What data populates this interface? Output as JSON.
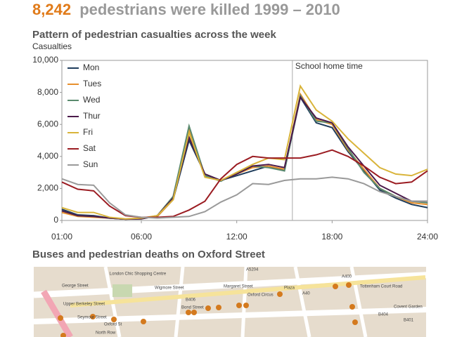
{
  "header": {
    "number": "8,242",
    "text": "pedestrians were killed 1999 – 2010"
  },
  "chart_data": {
    "type": "line",
    "title": "Pattern of pedestrian casualties across the week",
    "y_label": "Casualties",
    "x": [
      1,
      2,
      3,
      4,
      5,
      6,
      7,
      8,
      9,
      10,
      11,
      12,
      13,
      14,
      15,
      16,
      17,
      18,
      19,
      20,
      21,
      22,
      23,
      24
    ],
    "xlim": [
      1,
      24
    ],
    "xticks": [
      {
        "value": 1,
        "label": "01:00"
      },
      {
        "value": 6,
        "label": "06:00"
      },
      {
        "value": 12,
        "label": "12:00"
      },
      {
        "value": 18,
        "label": "18:00"
      },
      {
        "value": 24,
        "label": "24:00"
      }
    ],
    "ylim": [
      0,
      10000
    ],
    "yticks": [
      0,
      {
        "value": 2000,
        "label": "2,000"
      },
      {
        "value": 4000,
        "label": "4,000"
      },
      {
        "value": 6000,
        "label": "6,000"
      },
      {
        "value": 8000,
        "label": "8,000"
      },
      {
        "value": 10000,
        "label": "10,000"
      }
    ],
    "grid": false,
    "legend": "top-left",
    "annotation": {
      "label": "School home time",
      "x": 15.5
    },
    "series": [
      {
        "name": "Mon",
        "color": "#1f3d5c",
        "values": [
          700,
          350,
          300,
          150,
          80,
          120,
          250,
          1300,
          5000,
          2900,
          2500,
          2800,
          3100,
          3400,
          3100,
          7700,
          6100,
          5800,
          4300,
          3100,
          1900,
          1400,
          1000,
          800
        ]
      },
      {
        "name": "Tues",
        "color": "#e8902e",
        "values": [
          500,
          250,
          200,
          150,
          80,
          120,
          250,
          1300,
          5700,
          2700,
          2500,
          2900,
          3300,
          3400,
          3200,
          7900,
          6300,
          6000,
          4400,
          3200,
          2000,
          1500,
          1100,
          1000
        ]
      },
      {
        "name": "Wed",
        "color": "#5a8a6e",
        "values": [
          600,
          300,
          250,
          150,
          80,
          100,
          300,
          1500,
          5900,
          2800,
          2450,
          3000,
          3400,
          3300,
          3100,
          7800,
          6200,
          6100,
          4500,
          3000,
          2000,
          1500,
          1200,
          1100
        ]
      },
      {
        "name": "Thur",
        "color": "#4b1a4a",
        "values": [
          600,
          300,
          250,
          150,
          80,
          100,
          300,
          1400,
          5200,
          2900,
          2500,
          2900,
          3400,
          3500,
          3300,
          7700,
          6400,
          6100,
          4600,
          3400,
          2200,
          1700,
          1200,
          1200
        ]
      },
      {
        "name": "Fri",
        "color": "#d9b43a",
        "values": [
          800,
          500,
          500,
          200,
          100,
          150,
          300,
          1300,
          5500,
          2700,
          2500,
          3000,
          3500,
          3900,
          3800,
          8400,
          6900,
          6200,
          5100,
          4200,
          3300,
          2900,
          2800,
          3200
        ]
      },
      {
        "name": "Sat",
        "color": "#9b1c22",
        "values": [
          2400,
          1950,
          1850,
          900,
          300,
          200,
          200,
          250,
          650,
          1200,
          2600,
          3500,
          4000,
          3900,
          3900,
          3900,
          4100,
          4400,
          4000,
          3400,
          2700,
          2300,
          2400,
          3100
        ]
      },
      {
        "name": "Sun",
        "color": "#9a9a9a",
        "values": [
          2600,
          2250,
          2200,
          1100,
          350,
          200,
          150,
          200,
          250,
          550,
          1150,
          1600,
          2300,
          2250,
          2500,
          2600,
          2600,
          2700,
          2600,
          2300,
          1800,
          1500,
          1200,
          1200
        ]
      }
    ]
  },
  "map": {
    "title": "Buses and pedestrian deaths on Oxford Street",
    "labels": [
      "London Chic Shopping Centre",
      "A5204",
      "B406",
      "A400",
      "Tottenham Court Road",
      "Wigmore Street",
      "Margaret Street",
      "Oxford Circus",
      "Bond Street",
      "Plaza",
      "Covent Garden",
      "George Street",
      "Upper Berkeley Street",
      "Seymour Street",
      "Oxford St",
      "North Row",
      "A40",
      "B404",
      "B401"
    ]
  }
}
